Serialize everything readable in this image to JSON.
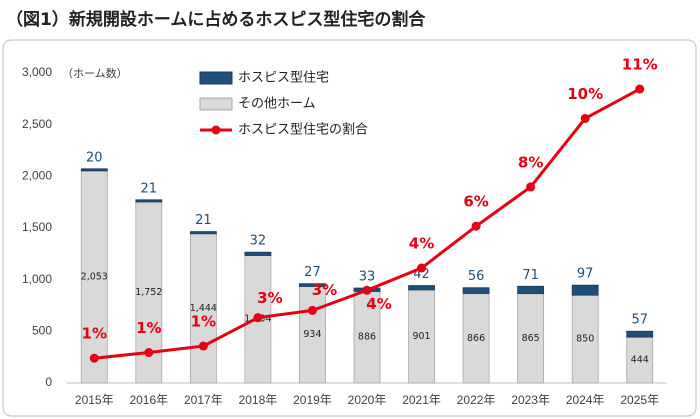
{
  "chart_data": {
    "type": "bar",
    "title": "（図1）新規開設ホームに占めるホスピス型住宅の割合",
    "y_axis_label": "（ホーム数）",
    "categories": [
      "2015年",
      "2016年",
      "2017年",
      "2018年",
      "2019年",
      "2020年",
      "2021年",
      "2022年",
      "2023年",
      "2024年",
      "2025年"
    ],
    "series": [
      {
        "name": "ホスピス型住宅",
        "color": "#1f4e79",
        "values": [
          20,
          21,
          21,
          32,
          27,
          33,
          42,
          56,
          71,
          97,
          57
        ]
      },
      {
        "name": "その他ホーム",
        "color": "#d9d9d9",
        "values": [
          2053,
          1752,
          1444,
          1234,
          934,
          886,
          901,
          866,
          865,
          850,
          444
        ],
        "value_labels": [
          "2,053",
          "1,752",
          "1,444",
          "1,234",
          "934",
          "886",
          "901",
          "866",
          "865",
          "850",
          "444"
        ]
      },
      {
        "name": "ホスピス型住宅の割合",
        "type": "line",
        "axis": "y2",
        "color": "#e60012",
        "values": [
          0.96,
          1.18,
          1.43,
          2.53,
          2.81,
          3.59,
          4.45,
          6.07,
          7.59,
          10.24,
          11.38
        ],
        "value_labels": [
          "1%",
          "1%",
          "1%",
          "3%",
          "3%",
          "4%",
          "4%",
          "6%",
          "8%",
          "10%",
          "11%"
        ]
      }
    ],
    "ylim": [
      0,
      3000
    ],
    "yticks": [
      0,
      500,
      {
        "value": 1000,
        "label": "1,000"
      },
      {
        "value": 1500,
        "label": "1,500"
      },
      {
        "value": 2000,
        "label": "2,000"
      },
      {
        "value": 2500,
        "label": "2,500"
      },
      {
        "value": 3000,
        "label": "3,000"
      }
    ],
    "y2lim": [
      0,
      12
    ]
  }
}
